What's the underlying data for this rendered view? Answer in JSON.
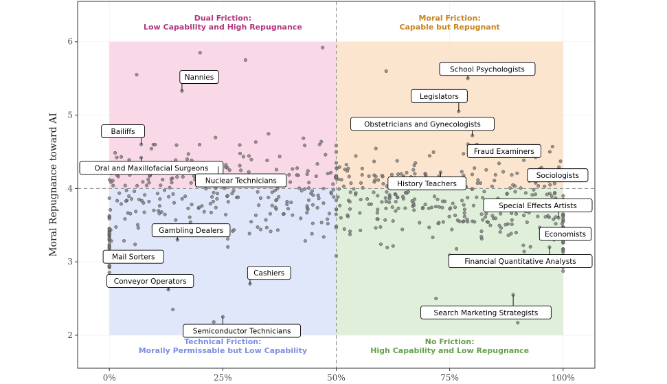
{
  "chart_data": {
    "type": "scatter",
    "title": "",
    "xlabel": "",
    "ylabel": "Moral Repugnance toward AI",
    "xlim": [
      -0.07,
      1.07
    ],
    "ylim": [
      1.55,
      6.55
    ],
    "x_ticks": [
      {
        "value": 0,
        "label": "0%"
      },
      {
        "value": 0.25,
        "label": "25%"
      },
      {
        "value": 0.5,
        "label": "50%"
      },
      {
        "value": 0.75,
        "label": "75%"
      },
      {
        "value": 1.0,
        "label": "100%"
      }
    ],
    "y_ticks": [
      {
        "value": 2,
        "label": "2"
      },
      {
        "value": 3,
        "label": "3"
      },
      {
        "value": 4,
        "label": "4"
      },
      {
        "value": 5,
        "label": "5"
      },
      {
        "value": 6,
        "label": "6"
      }
    ],
    "thresholds": {
      "x": 0.5,
      "y": 4.0
    },
    "quadrants": [
      {
        "name": "dual",
        "title": "Dual Friction:",
        "subtitle": "Low Capability and High Repugnance",
        "x": [
          0,
          0.5
        ],
        "y": [
          4,
          6
        ],
        "fill": "#f4b8d4",
        "text_color": "#b2377f",
        "title_pos": "top"
      },
      {
        "name": "moral",
        "title": "Moral Friction:",
        "subtitle": "Capable but Repugnant",
        "x": [
          0.5,
          1.0
        ],
        "y": [
          4,
          6
        ],
        "fill": "#f9cfa8",
        "text_color": "#c8841f",
        "title_pos": "top"
      },
      {
        "name": "technical",
        "title": "Technical Friction:",
        "subtitle": "Morally Permissable but Low Capability",
        "x": [
          0,
          0.5
        ],
        "y": [
          2,
          4
        ],
        "fill": "#c9d3f5",
        "text_color": "#7b8de0",
        "title_pos": "bottom"
      },
      {
        "name": "none",
        "title": "No Friction:",
        "subtitle": "High Capability and Low Repugnance",
        "x": [
          0.5,
          1.0
        ],
        "y": [
          2,
          4
        ],
        "fill": "#c4e1b9",
        "text_color": "#63a047",
        "title_pos": "bottom"
      }
    ],
    "labeled_points": [
      {
        "label": "Nannies",
        "x": 0.16,
        "y": 5.33,
        "lx": 0.198,
        "ly": 5.52
      },
      {
        "label": "Bailiffs",
        "x": 0.07,
        "y": 4.6,
        "lx": 0.03,
        "ly": 4.78
      },
      {
        "label": "Oral and Maxillofacial Surgeons",
        "x": 0.07,
        "y": 4.42,
        "lx": 0.06,
        "ly": 4.28
      },
      {
        "label": "Nuclear Technicians",
        "x": 0.24,
        "y": 4.3,
        "lx": 0.29,
        "ly": 4.11
      },
      {
        "label": "Gambling Dealers",
        "x": 0.15,
        "y": 3.3,
        "lx": 0.18,
        "ly": 3.43
      },
      {
        "label": "Mail Sorters",
        "x": 0.09,
        "y": 3.1,
        "lx": 0.053,
        "ly": 3.07
      },
      {
        "label": "Conveyor Operators",
        "x": 0.13,
        "y": 2.62,
        "lx": 0.09,
        "ly": 2.74
      },
      {
        "label": "Cashiers",
        "x": 0.31,
        "y": 2.7,
        "lx": 0.352,
        "ly": 2.85
      },
      {
        "label": "Semiconductor Technicians",
        "x": 0.25,
        "y": 2.25,
        "lx": 0.292,
        "ly": 2.06
      },
      {
        "label": "School Psychologists",
        "x": 0.79,
        "y": 5.5,
        "lx": 0.833,
        "ly": 5.63
      },
      {
        "label": "Legislators",
        "x": 0.77,
        "y": 5.05,
        "lx": 0.727,
        "ly": 5.26
      },
      {
        "label": "Obstetricians and Gynecologists",
        "x": 0.8,
        "y": 4.72,
        "lx": 0.69,
        "ly": 4.88
      },
      {
        "label": "Fraud Examiners",
        "x": 0.81,
        "y": 4.6,
        "lx": 0.87,
        "ly": 4.51
      },
      {
        "label": "History Teachers",
        "x": 0.73,
        "y": 4.22,
        "lx": 0.7,
        "ly": 4.07
      },
      {
        "label": "Sociologists",
        "x": 0.94,
        "y": 4.1,
        "lx": 0.988,
        "ly": 4.18
      },
      {
        "label": "Special Effects Artists",
        "x": 0.99,
        "y": 3.6,
        "lx": 0.958,
        "ly": 3.77
      },
      {
        "label": "Economists",
        "x": 0.98,
        "y": 3.3,
        "lx": 1.005,
        "ly": 3.38
      },
      {
        "label": "Financial Quantitative Analysts",
        "x": 0.97,
        "y": 3.2,
        "lx": 0.925,
        "ly": 3.01
      },
      {
        "label": "Search Marketing Strategists",
        "x": 0.89,
        "y": 2.55,
        "lx": 0.83,
        "ly": 2.31
      }
    ],
    "point_summary": {
      "approx_count": 700,
      "x_range": [
        0,
        1
      ],
      "y_range": [
        2.15,
        5.95
      ]
    },
    "colors": {
      "point_fill": "#777777",
      "point_stroke": "#333333",
      "grid": "#e6e6e6",
      "panel_border": "#333333",
      "threshold": "#888888"
    }
  }
}
